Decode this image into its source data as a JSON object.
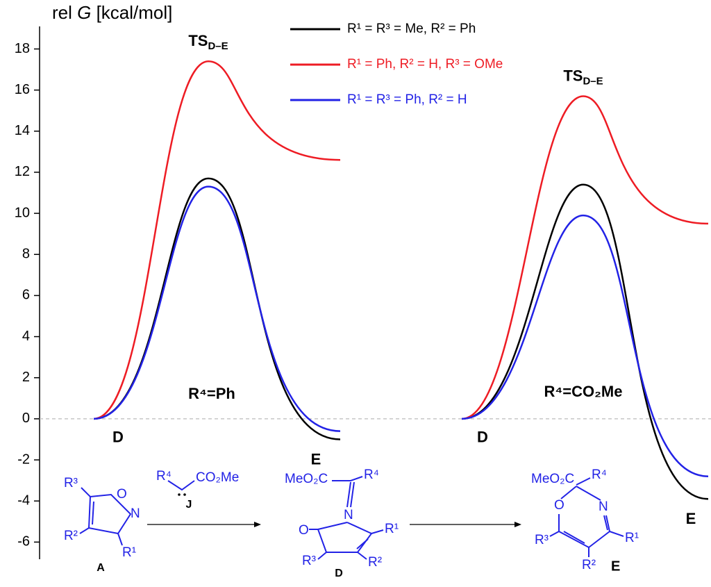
{
  "chart_data": {
    "type": "energy_profile",
    "y_label": {
      "pre": "rel ",
      "italic": "G",
      "post": "  [kcal/mol]"
    },
    "ylim": [
      -6.8,
      19.2
    ],
    "yticks": [
      -6,
      -4,
      -2,
      0,
      2,
      4,
      6,
      8,
      10,
      12,
      14,
      16,
      18
    ],
    "zero_line": true,
    "series": [
      {
        "name": "R¹ = R³ = Me, R² = Ph",
        "color": "#000000"
      },
      {
        "name": "R¹ = Ph, R² = H, R³ = OMe",
        "color": "#ee1c24"
      },
      {
        "name": "R¹ = R³ = Ph, R² = H",
        "color": "#2222e6"
      }
    ],
    "profiles": [
      {
        "label": "R⁴=Ph",
        "categories": [
          "D",
          "TS",
          "E"
        ],
        "ts_subscript": "D–E",
        "values": [
          [
            0,
            11.7,
            -1.0
          ],
          [
            0,
            17.4,
            12.6
          ],
          [
            0,
            11.3,
            -0.6
          ]
        ]
      },
      {
        "label": "R⁴=CO₂Me",
        "categories": [
          "D",
          "TS",
          "E"
        ],
        "ts_subscript": "D–E",
        "values": [
          [
            0,
            11.4,
            -3.9
          ],
          [
            0,
            15.7,
            9.5
          ],
          [
            0,
            9.9,
            -2.8
          ]
        ]
      }
    ]
  },
  "scheme": {
    "A": {
      "R3": "R³",
      "O": "O",
      "N": "N",
      "R2": "R²",
      "R1": "R¹",
      "label": "A"
    },
    "J": {
      "R4": "R⁴",
      "ester": "CO₂Me",
      "label": "J"
    },
    "D": {
      "ester": "MeO₂C",
      "R4": "R⁴",
      "N": "N",
      "R1": "R¹",
      "O": "O",
      "R3": "R³",
      "R2": "R²",
      "label": "D"
    },
    "E": {
      "ester": "MeO₂C",
      "R4": "R⁴",
      "O": "O",
      "N": "N",
      "R1": "R¹",
      "R3": "R³",
      "R2": "R²",
      "label": "E"
    }
  }
}
